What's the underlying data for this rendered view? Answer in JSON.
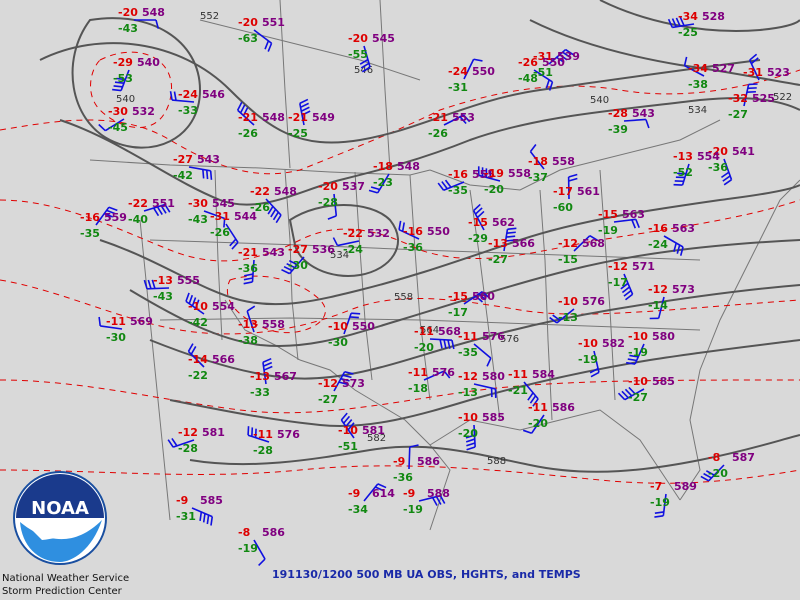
{
  "title": "191130/1200 500 MB UA OBS, HGHTS, and TEMPS",
  "logo_text": "NOAA",
  "organization": [
    "National Weather Service",
    "Storm Prediction Center"
  ],
  "colors": {
    "background": "#d9d9d9",
    "height_contour": "#555555",
    "temperature_isotherm": "#e00000",
    "temperature_text": "#dd0000",
    "dewpoint_text": "#118811",
    "height_text": "#800080",
    "wind_barb": "#1010e0",
    "boundaries": "#777777",
    "footer_text": "#1a2aa8"
  },
  "contour_labels": [
    {
      "id": "c1",
      "text": "552"
    },
    {
      "id": "c2",
      "text": "546"
    },
    {
      "id": "c3",
      "text": "540"
    },
    {
      "id": "c4",
      "text": "540"
    },
    {
      "id": "c5",
      "text": "558"
    },
    {
      "id": "c6",
      "text": "534"
    },
    {
      "id": "c7",
      "text": "534"
    },
    {
      "id": "c8",
      "text": "522"
    },
    {
      "id": "c9",
      "text": "582"
    },
    {
      "id": "c10",
      "text": "588"
    },
    {
      "id": "c11",
      "text": "564"
    },
    {
      "id": "c12",
      "text": "576"
    }
  ],
  "stations": [
    {
      "id": "s1",
      "t": "-20",
      "h": "548",
      "d": "-43"
    },
    {
      "id": "s2",
      "t": "-20",
      "h": "551",
      "d": "-63"
    },
    {
      "id": "s3",
      "t": "-20",
      "h": "545",
      "d": "-55"
    },
    {
      "id": "s4",
      "t": "-29",
      "h": "540",
      "d": "-53"
    },
    {
      "id": "s5",
      "t": "-30",
      "h": "532",
      "d": "-45"
    },
    {
      "id": "s6",
      "t": "-24",
      "h": "546",
      "d": "-33"
    },
    {
      "id": "s7",
      "t": "-21",
      "h": "548",
      "d": "-26"
    },
    {
      "id": "s8",
      "t": "-21",
      "h": "549",
      "d": "-25"
    },
    {
      "id": "s9",
      "t": "-24",
      "h": "550",
      "d": "-31"
    },
    {
      "id": "s10",
      "t": "-21",
      "h": "553",
      "d": "-26"
    },
    {
      "id": "s11",
      "t": "-27",
      "h": "543",
      "d": "-42"
    },
    {
      "id": "s12",
      "t": "-22",
      "h": "548",
      "d": "-26"
    },
    {
      "id": "s13",
      "t": "-20",
      "h": "537",
      "d": "-28"
    },
    {
      "id": "s14",
      "t": "-18",
      "h": "548",
      "d": "-23"
    },
    {
      "id": "s15",
      "t": "-16",
      "h": "555",
      "d": "-35"
    },
    {
      "id": "s16",
      "t": "-19",
      "h": "558",
      "d": "-20"
    },
    {
      "id": "s17",
      "t": "-18",
      "h": "558",
      "d": "-37"
    },
    {
      "id": "s18",
      "t": "-17",
      "h": "561",
      "d": "-60"
    },
    {
      "id": "s19",
      "t": "-16",
      "h": "559",
      "d": "-35"
    },
    {
      "id": "s20",
      "t": "-22",
      "h": "551",
      "d": "-40"
    },
    {
      "id": "s21",
      "t": "-30",
      "h": "545",
      "d": "-43"
    },
    {
      "id": "s22",
      "t": "-31",
      "h": "544",
      "d": "-26"
    },
    {
      "id": "s23",
      "t": "-21",
      "h": "543",
      "d": "-36"
    },
    {
      "id": "s24",
      "t": "-27",
      "h": "536",
      "d": "-30"
    },
    {
      "id": "s25",
      "t": "-22",
      "h": "532",
      "d": "-24"
    },
    {
      "id": "s26",
      "t": "-16",
      "h": "550",
      "d": "-36"
    },
    {
      "id": "s27",
      "t": "-15",
      "h": "562",
      "d": "-29"
    },
    {
      "id": "s28",
      "t": "-13",
      "h": "566",
      "d": "-27"
    },
    {
      "id": "s29",
      "t": "-12",
      "h": "568",
      "d": "-15"
    },
    {
      "id": "s30",
      "t": "-15",
      "h": "563",
      "d": "-19"
    },
    {
      "id": "s31",
      "t": "-16",
      "h": "563",
      "d": "-24"
    },
    {
      "id": "s32",
      "t": "-12",
      "h": "571",
      "d": "-17"
    },
    {
      "id": "s33",
      "t": "-12",
      "h": "573",
      "d": "-14"
    },
    {
      "id": "s34",
      "t": "-10",
      "h": "576",
      "d": "-13"
    },
    {
      "id": "s35",
      "t": "-13",
      "h": "555",
      "d": "-43"
    },
    {
      "id": "s36",
      "t": "-10",
      "h": "554",
      "d": "-42"
    },
    {
      "id": "s37",
      "t": "-13",
      "h": "558",
      "d": "-38"
    },
    {
      "id": "s38",
      "t": "-10",
      "h": "550",
      "d": "-30"
    },
    {
      "id": "s39",
      "t": "-15",
      "h": "560",
      "d": "-17"
    },
    {
      "id": "s40",
      "t": "-11",
      "h": "568",
      "d": "-20"
    },
    {
      "id": "s41",
      "t": "-11",
      "h": "576",
      "d": "-35"
    },
    {
      "id": "s42",
      "t": "-10",
      "h": "582",
      "d": "-19"
    },
    {
      "id": "s43",
      "t": "-10",
      "h": "580",
      "d": "-19"
    },
    {
      "id": "s44",
      "t": "-10",
      "h": "585",
      "d": "-27"
    },
    {
      "id": "s45",
      "t": "-11",
      "h": "569",
      "d": "-30"
    },
    {
      "id": "s46",
      "t": "-14",
      "h": "566",
      "d": "-22"
    },
    {
      "id": "s47",
      "t": "-13",
      "h": "567",
      "d": "-33"
    },
    {
      "id": "s48",
      "t": "-12",
      "h": "573",
      "d": "-27"
    },
    {
      "id": "s49",
      "t": "-11",
      "h": "576",
      "d": "-18"
    },
    {
      "id": "s50",
      "t": "-12",
      "h": "580",
      "d": "-13"
    },
    {
      "id": "s51",
      "t": "-11",
      "h": "584",
      "d": "-21"
    },
    {
      "id": "s52",
      "t": "-10",
      "h": "585",
      "d": "-20"
    },
    {
      "id": "s53",
      "t": "-11",
      "h": "586",
      "d": "-20"
    },
    {
      "id": "s54",
      "t": "-12",
      "h": "581",
      "d": "-28"
    },
    {
      "id": "s55",
      "t": "-11",
      "h": "576",
      "d": "-28"
    },
    {
      "id": "s56",
      "t": "-10",
      "h": "581",
      "d": "-51"
    },
    {
      "id": "s57",
      "t": "-9",
      "h": "586",
      "d": "-36"
    },
    {
      "id": "s58",
      "t": "-9",
      "h": "614",
      "d": "-34"
    },
    {
      "id": "s59",
      "t": "-9",
      "h": "588",
      "d": "-19"
    },
    {
      "id": "s60",
      "t": "-9",
      "h": "585",
      "d": "-31"
    },
    {
      "id": "s61",
      "t": "-8",
      "h": "586",
      "d": "-19"
    },
    {
      "id": "s62",
      "t": "-7",
      "h": "589",
      "d": "-19"
    },
    {
      "id": "s63",
      "t": "-8",
      "h": "587",
      "d": "-20"
    },
    {
      "id": "s64",
      "t": "-34",
      "h": "528",
      "d": "-25"
    },
    {
      "id": "s65",
      "t": "-34",
      "h": "527",
      "d": "-38"
    },
    {
      "id": "s66",
      "t": "-31",
      "h": "523",
      "d": ""
    },
    {
      "id": "s67",
      "t": "-32",
      "h": "525",
      "d": "-27"
    },
    {
      "id": "s68",
      "t": "-31",
      "h": "539",
      "d": "-51"
    },
    {
      "id": "s69",
      "t": "-28",
      "h": "543",
      "d": "-39"
    },
    {
      "id": "s70",
      "t": "-26",
      "h": "550",
      "d": "-48"
    },
    {
      "id": "s71",
      "t": "-20",
      "h": "541",
      "d": "-36"
    },
    {
      "id": "s72",
      "t": "-13",
      "h": "554",
      "d": "-52"
    }
  ]
}
